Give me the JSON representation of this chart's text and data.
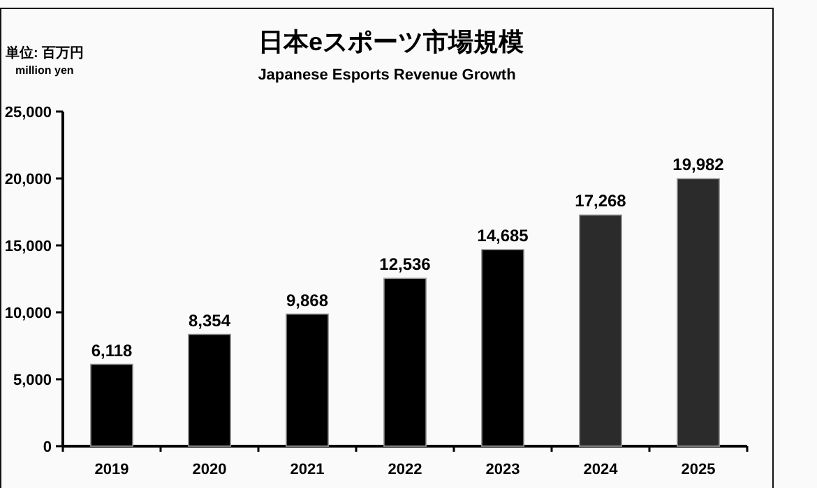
{
  "chart_data": {
    "type": "bar",
    "title": "日本eスポーツ市場規模",
    "subtitle": "Japanese Esports Revenue Growth",
    "ylabel": "単位: 百万円",
    "annotations": [
      "million yen"
    ],
    "categories": [
      "2019",
      "2020",
      "2021",
      "2022",
      "2023",
      "2024",
      "2025"
    ],
    "values": [
      6118,
      8354,
      9868,
      12536,
      14685,
      17268,
      19982
    ],
    "value_labels": [
      "6,118",
      "8,354",
      "9,868",
      "12,536",
      "14,685",
      "17,268",
      "19,982"
    ],
    "colors": [
      "#000000",
      "#000000",
      "#000000",
      "#000000",
      "#000000",
      "#2b2b2b",
      "#2b2b2b"
    ],
    "ylim": [
      0,
      25000
    ],
    "yticks": [
      {
        "value": 0,
        "label": "0"
      },
      {
        "value": 5000,
        "label": "5,000"
      },
      {
        "value": 10000,
        "label": "10,000"
      },
      {
        "value": 15000,
        "label": "15,000"
      },
      {
        "value": 20000,
        "label": "20,000"
      },
      {
        "value": 25000,
        "label": "25,000"
      }
    ],
    "grid": false
  }
}
